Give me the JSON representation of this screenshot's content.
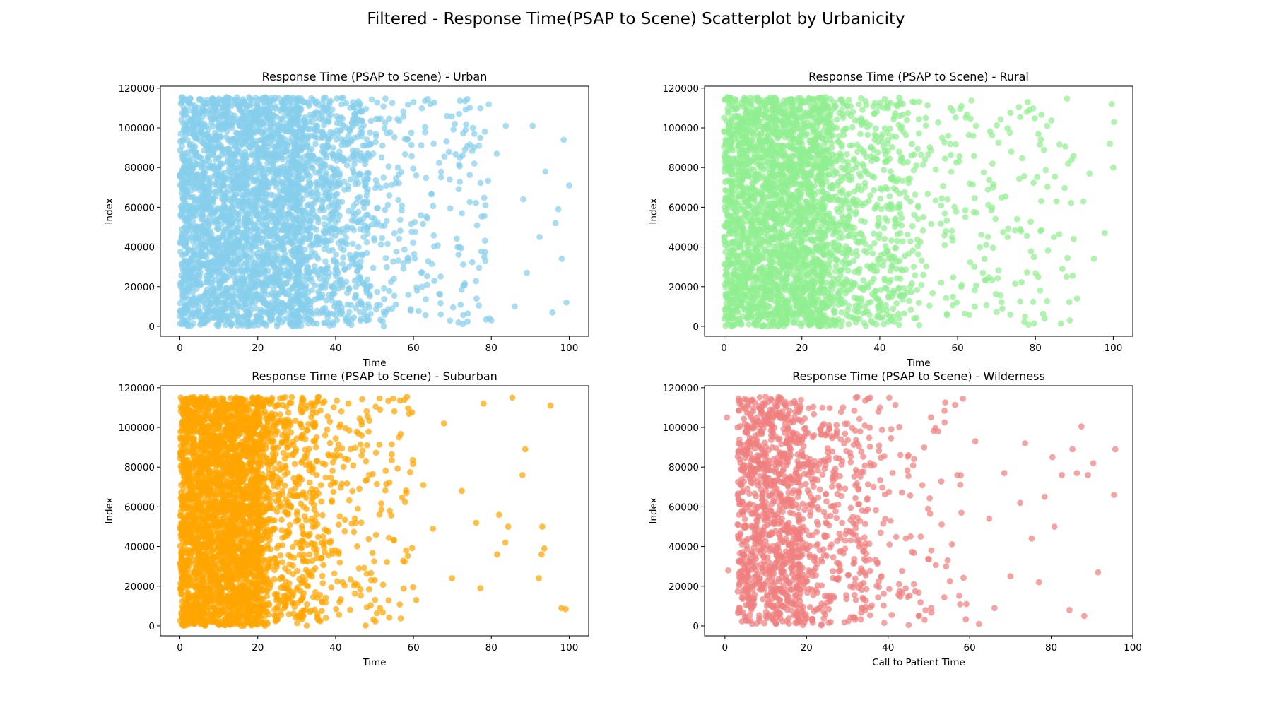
{
  "figure": {
    "title": "Filtered - Response Time(PSAP to Scene) Scatterplot by Urbanicity"
  },
  "chart_data": [
    {
      "type": "scatter",
      "title": "Response Time (PSAP to Scene) - Urban",
      "xlabel": "Time",
      "ylabel": "Index",
      "xlim": [
        -5,
        105
      ],
      "ylim": [
        -5000,
        121000
      ],
      "xticks": [
        0,
        20,
        40,
        60,
        80,
        100
      ],
      "yticks": [
        0,
        20000,
        40000,
        60000,
        80000,
        100000,
        120000
      ],
      "color": "#87CEEB",
      "grid": false,
      "y_index_range": [
        0,
        115500
      ],
      "x_distribution": "dense 0-30, tapering to 100",
      "points": [
        [
          3.2,
          104000
        ],
        [
          12.5,
          58000
        ],
        [
          25.1,
          91000
        ],
        [
          29.0,
          12000
        ],
        [
          33.5,
          71000
        ],
        [
          36.8,
          28000
        ],
        [
          41.0,
          88000
        ],
        [
          44.5,
          111000
        ],
        [
          47.2,
          45000
        ],
        [
          50.3,
          97000
        ],
        [
          52.1,
          2500
        ],
        [
          53.8,
          66000
        ],
        [
          56.0,
          80000
        ],
        [
          58.7,
          33000
        ],
        [
          60.0,
          113000
        ],
        [
          61.9,
          56000
        ],
        [
          63.5,
          21000
        ],
        [
          65.2,
          92000
        ],
        [
          67.0,
          6000
        ],
        [
          69.3,
          74000
        ],
        [
          71.8,
          40000
        ],
        [
          73.4,
          99000
        ],
        [
          76.2,
          14000
        ],
        [
          78.5,
          61000
        ],
        [
          80.0,
          3000
        ],
        [
          81.4,
          87000
        ],
        [
          83.7,
          101000
        ],
        [
          86.0,
          10000
        ],
        [
          88.2,
          64000
        ],
        [
          89.1,
          27000
        ],
        [
          90.6,
          101000
        ],
        [
          92.4,
          45000
        ],
        [
          93.9,
          78000
        ],
        [
          95.7,
          7000
        ],
        [
          97.2,
          59000
        ],
        [
          98.1,
          34000
        ],
        [
          98.6,
          94000
        ],
        [
          99.3,
          12000
        ],
        [
          100.0,
          71000
        ],
        [
          96.5,
          52000
        ]
      ]
    },
    {
      "type": "scatter",
      "title": "Response Time (PSAP to Scene) - Rural",
      "xlabel": "Time",
      "ylabel": "Index",
      "xlim": [
        -5,
        105
      ],
      "ylim": [
        -5000,
        121000
      ],
      "xticks": [
        0,
        20,
        40,
        60,
        80,
        100
      ],
      "yticks": [
        0,
        20000,
        40000,
        60000,
        80000,
        100000,
        120000
      ],
      "color": "#90EE90",
      "grid": false,
      "y_index_range": [
        0,
        115500
      ],
      "x_distribution": "dense 0-25, tapering to 100",
      "points": [
        [
          2.1,
          73000
        ],
        [
          14.0,
          35000
        ],
        [
          27.3,
          104000
        ],
        [
          31.8,
          18000
        ],
        [
          35.1,
          62000
        ],
        [
          38.4,
          89000
        ],
        [
          42.6,
          5000
        ],
        [
          45.3,
          47000
        ],
        [
          48.9,
          113000
        ],
        [
          51.2,
          26000
        ],
        [
          54.4,
          79000
        ],
        [
          57.6,
          96000
        ],
        [
          59.8,
          12000
        ],
        [
          62.0,
          55000
        ],
        [
          64.7,
          101000
        ],
        [
          66.9,
          34000
        ],
        [
          69.1,
          70000
        ],
        [
          71.5,
          9000
        ],
        [
          73.8,
          88000
        ],
        [
          76.3,
          48000
        ],
        [
          78.0,
          113000
        ],
        [
          79.6,
          35000
        ],
        [
          81.2,
          18000
        ],
        [
          83.0,
          101000
        ],
        [
          85.4,
          63000
        ],
        [
          86.9,
          29000
        ],
        [
          88.4,
          82000
        ],
        [
          89.8,
          44000
        ],
        [
          90.7,
          14000
        ],
        [
          92.3,
          63000
        ],
        [
          93.9,
          77000
        ],
        [
          95.0,
          34000
        ],
        [
          97.8,
          47000
        ],
        [
          99.1,
          92000
        ],
        [
          99.6,
          112000
        ],
        [
          100.0,
          80000
        ],
        [
          100.2,
          103000
        ],
        [
          88.0,
          25000
        ]
      ]
    },
    {
      "type": "scatter",
      "title": "Response Time (PSAP to Scene) - Suburban",
      "xlabel": "Time",
      "ylabel": "Index",
      "xlim": [
        -5,
        105
      ],
      "ylim": [
        -5000,
        121000
      ],
      "xticks": [
        0,
        20,
        40,
        60,
        80,
        100
      ],
      "yticks": [
        0,
        20000,
        40000,
        60000,
        80000,
        100000,
        120000
      ],
      "color": "#FFA500",
      "grid": false,
      "y_index_range": [
        0,
        115500
      ],
      "x_distribution": "dense 0-20, tapering to 100",
      "points": [
        [
          1.5,
          87000
        ],
        [
          11.0,
          43000
        ],
        [
          23.6,
          107000
        ],
        [
          27.9,
          19000
        ],
        [
          31.2,
          66000
        ],
        [
          34.7,
          93000
        ],
        [
          37.5,
          4000
        ],
        [
          40.8,
          51000
        ],
        [
          43.3,
          112000
        ],
        [
          46.0,
          29000
        ],
        [
          48.6,
          76000
        ],
        [
          51.4,
          9000
        ],
        [
          53.9,
          58000
        ],
        [
          56.3,
          95000
        ],
        [
          58.1,
          38000
        ],
        [
          60.7,
          13000
        ],
        [
          62.5,
          71000
        ],
        [
          65.0,
          49000
        ],
        [
          67.8,
          102000
        ],
        [
          69.9,
          24000
        ],
        [
          72.4,
          68000
        ],
        [
          76.1,
          52000
        ],
        [
          77.2,
          19000
        ],
        [
          78.0,
          112000
        ],
        [
          81.5,
          36000
        ],
        [
          82.0,
          56000
        ],
        [
          83.6,
          42000
        ],
        [
          84.3,
          50000
        ],
        [
          85.4,
          115000
        ],
        [
          88.0,
          76000
        ],
        [
          88.7,
          89000
        ],
        [
          92.2,
          24000
        ],
        [
          92.9,
          36000
        ],
        [
          93.1,
          50000
        ],
        [
          93.6,
          39000
        ],
        [
          95.2,
          111000
        ],
        [
          98.0,
          9000
        ],
        [
          99.1,
          8500
        ]
      ]
    },
    {
      "type": "scatter",
      "title": "Response Time (PSAP to Scene) - Wilderness",
      "xlabel": "Call to Patient Time",
      "ylabel": "Index",
      "xlim": [
        -5,
        100
      ],
      "ylim": [
        -5000,
        121000
      ],
      "xticks": [
        0,
        20,
        40,
        60,
        80,
        100
      ],
      "yticks": [
        0,
        20000,
        40000,
        60000,
        80000,
        100000,
        120000
      ],
      "color": "#F08080",
      "grid": false,
      "y_index_range": [
        0,
        115500
      ],
      "x_distribution": "dense 2-25, tapering to 95",
      "points": [
        [
          0.5,
          105000
        ],
        [
          0.8,
          28000
        ],
        [
          16.0,
          62000
        ],
        [
          28.4,
          94000
        ],
        [
          32.1,
          13000
        ],
        [
          35.6,
          115000
        ],
        [
          38.2,
          47000
        ],
        [
          40.3,
          115000
        ],
        [
          42.7,
          21000
        ],
        [
          45.0,
          86000
        ],
        [
          47.5,
          5000
        ],
        [
          49.8,
          59000
        ],
        [
          52.3,
          98000
        ],
        [
          54.6,
          33000
        ],
        [
          57.0,
          76000
        ],
        [
          59.2,
          11000
        ],
        [
          61.4,
          93000
        ],
        [
          62.3,
          1000
        ],
        [
          64.8,
          54000
        ],
        [
          66.1,
          9000
        ],
        [
          68.5,
          77000
        ],
        [
          70.0,
          25000
        ],
        [
          72.4,
          62000
        ],
        [
          73.6,
          92000
        ],
        [
          75.2,
          44000
        ],
        [
          77.0,
          22000
        ],
        [
          78.4,
          65000
        ],
        [
          80.3,
          85000
        ],
        [
          80.8,
          50000
        ],
        [
          82.6,
          76000
        ],
        [
          84.5,
          8000
        ],
        [
          85.2,
          89000
        ],
        [
          86.3,
          77000
        ],
        [
          87.4,
          100500
        ],
        [
          88.1,
          5000
        ],
        [
          89.0,
          76000
        ],
        [
          90.3,
          82000
        ],
        [
          91.5,
          27000
        ],
        [
          95.4,
          66000
        ],
        [
          95.7,
          89000
        ],
        [
          48.0,
          45000
        ],
        [
          50.6,
          38000
        ]
      ]
    }
  ]
}
